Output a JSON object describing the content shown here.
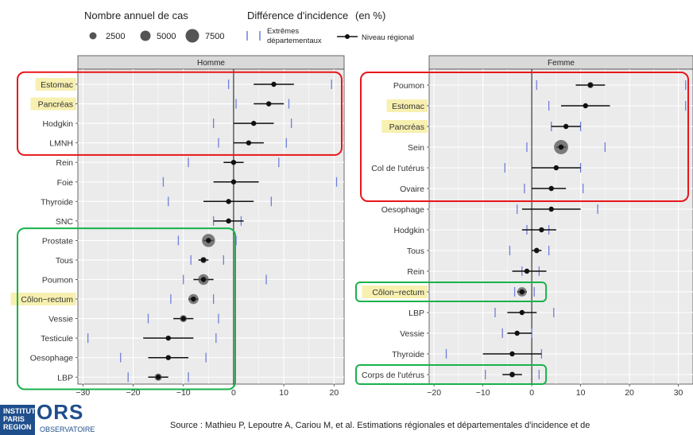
{
  "legend": {
    "size_title": "Nombre annuel de cas",
    "size_values": [
      "2500",
      "5000",
      "7500"
    ],
    "diff_title": "Différence d'incidence",
    "diff_unit": "(en %)",
    "extremes_label_1": "Extrêmes",
    "extremes_label_2": "départementaux",
    "regional_label": "Niveau régional"
  },
  "colors": {
    "panel_bg": "#ebebeb",
    "strip_bg": "#d9d9d9",
    "extreme_tick": "#6f7fd8",
    "regional": "#111111",
    "bubble": "#555555",
    "highlight_box_red": "#e8161b",
    "highlight_box_green": "#19b24b",
    "label_highlight": "#f7f0b0"
  },
  "chart_data": [
    {
      "type": "forest",
      "panel": "Homme",
      "xlim": [
        -31,
        22
      ],
      "xticks": [
        -30,
        -20,
        -10,
        0,
        10,
        20
      ],
      "categories": [
        "Estomac",
        "Pancréas",
        "Hodgkin",
        "LMNH",
        "Rein",
        "Foie",
        "Thyroide",
        "SNC",
        "Prostate",
        "Tous",
        "Poumon",
        "Côlon−rectum",
        "Vessie",
        "Testicule",
        "Oesophage",
        "LBP"
      ],
      "regional": [
        8,
        7,
        4,
        3,
        0,
        0,
        -1,
        -1,
        -5,
        -6,
        -6,
        -8,
        -10,
        -13,
        -13,
        -15
      ],
      "ci_low": [
        4,
        4,
        0,
        0,
        -2,
        -4,
        -6,
        -4,
        -6,
        -7,
        -8,
        -9,
        -12,
        -18,
        -17,
        -17
      ],
      "ci_high": [
        12,
        10,
        8,
        6,
        2,
        5,
        4,
        2,
        -4,
        -5,
        -4,
        -7,
        -8,
        -8,
        -9,
        -13
      ],
      "extreme_min": [
        -1,
        0.5,
        -4,
        -3,
        -9,
        -14,
        -13,
        -4,
        -11,
        -8.5,
        -10,
        -12.5,
        -17,
        -29,
        -22.5,
        -21
      ],
      "extreme_max": [
        19.5,
        11,
        11.5,
        10.5,
        9,
        20.5,
        7.5,
        1.5,
        0.5,
        -2,
        6.5,
        -4,
        -3,
        -3.5,
        -5.5,
        -9
      ],
      "cases_annual": [
        600,
        900,
        100,
        900,
        500,
        500,
        300,
        300,
        6800,
        1500,
        4500,
        4000,
        2000,
        200,
        700,
        2100
      ],
      "highlighted_labels": [
        "Estomac",
        "Pancréas",
        "Côlon−rectum"
      ],
      "red_box_rows": [
        "Estomac",
        "Pancréas",
        "Hodgkin",
        "LMNH"
      ],
      "green_box_rows": [
        "Prostate",
        "Tous",
        "Poumon",
        "Côlon−rectum",
        "Vessie",
        "Testicule",
        "Oesophage",
        "LBP"
      ]
    },
    {
      "type": "forest",
      "panel": "Femme",
      "xlim": [
        -21,
        33
      ],
      "xticks": [
        -20,
        -10,
        0,
        10,
        20,
        30
      ],
      "categories": [
        "Poumon",
        "Estomac",
        "Pancréas",
        "Sein",
        "Col de l'utérus",
        "Ovaire",
        "Oesophage",
        "Hodgkin",
        "Tous",
        "Rein",
        "Côlon−rectum",
        "LBP",
        "Vessie",
        "Thyroide",
        "Corps de l'utérus"
      ],
      "regional": [
        12,
        11,
        7,
        6,
        5,
        4,
        4,
        2,
        1,
        -1,
        -2,
        -2,
        -3,
        -4,
        -4
      ],
      "ci_low": [
        9,
        6,
        4,
        5,
        0,
        0,
        -2,
        -2,
        0,
        -4,
        -3,
        -5,
        -5,
        -10,
        -6
      ],
      "ci_high": [
        15,
        16,
        10,
        7,
        10,
        7,
        10,
        5,
        2,
        3,
        -1,
        1,
        0,
        2,
        -2
      ],
      "extreme_min": [
        1,
        3.5,
        4,
        -1,
        -5.5,
        -1.5,
        -3,
        -1,
        -4.5,
        -2,
        -3.5,
        -7.5,
        -6,
        -17.5,
        -9.5
      ],
      "extreme_max": [
        31.5,
        31.5,
        10,
        15,
        10,
        10.5,
        13.5,
        3.5,
        3.5,
        1.5,
        0.5,
        4.5,
        0,
        2,
        1.5
      ],
      "cases_annual": [
        1500,
        400,
        900,
        8000,
        300,
        600,
        200,
        100,
        1200,
        500,
        3500,
        400,
        400,
        700,
        1300
      ],
      "highlighted_labels": [
        "Estomac",
        "Pancréas",
        "Côlon−rectum"
      ],
      "red_box_rows": [
        "Poumon",
        "Estomac",
        "Pancréas",
        "Sein",
        "Col de l'utérus",
        "Ovaire"
      ],
      "green_box_rows": [
        "Côlon−rectum",
        "Corps de l'utérus"
      ]
    }
  ],
  "footer": {
    "logo_institut": "INSTITUT PARIS REGION",
    "logo_ors": "ORS",
    "logo_ors_sub": "OBSERVATOIRE",
    "source": "Source : Mathieu P, Lepoutre A, Cariou M, et al.  Estimations régionales et départementales d'incidence et de"
  }
}
